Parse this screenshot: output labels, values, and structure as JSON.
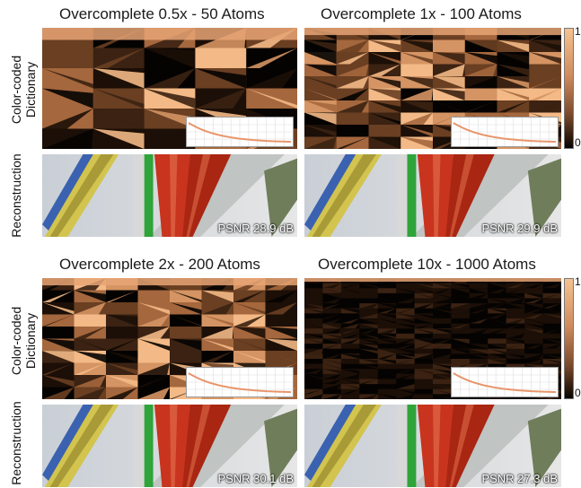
{
  "panels": [
    {
      "title": "Overcomplete 0.5x - 50 Atoms",
      "psnr": "PSNR 28.9 dB",
      "density": "low"
    },
    {
      "title": "Overcomplete 1x - 100 Atoms",
      "psnr": "PSNR 29.9 dB",
      "density": "mid"
    },
    {
      "title": "Overcomplete 2x - 200 Atoms",
      "psnr": "PSNR 30.1 dB",
      "density": "mid"
    },
    {
      "title": "Overcomplete 10x - 1000 Atoms",
      "psnr": "PSNR 27.3 dB",
      "density": "high"
    }
  ],
  "row_labels": {
    "dictionary_line1": "Color-coded",
    "dictionary_line2": "Dictionary",
    "reconstruction": "Reconstruction"
  },
  "colorbar": {
    "max_label": "1",
    "min_label": "0",
    "colors": [
      "#f6c291",
      "#cf8a5b",
      "#7b4a2c",
      "#2a170c",
      "#050302"
    ]
  }
}
